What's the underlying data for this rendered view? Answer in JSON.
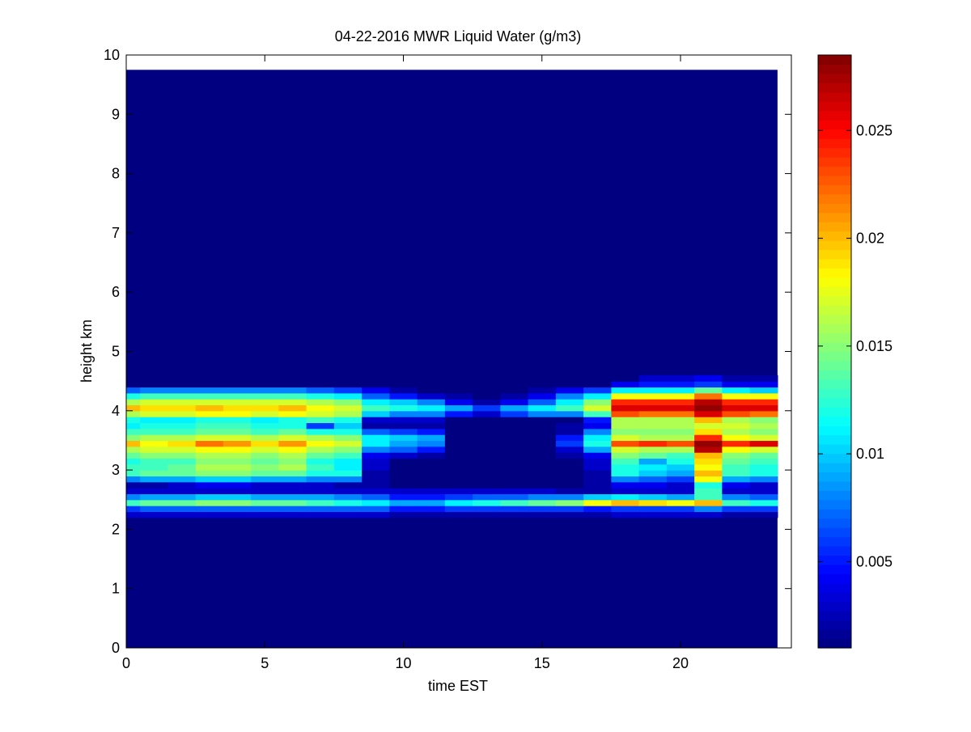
{
  "chart_data": {
    "type": "heatmap",
    "title": "04-22-2016 MWR Liquid Water (g/m3)",
    "xlabel": "time EST",
    "ylabel": "height km",
    "xlim": [
      0,
      24
    ],
    "ylim": [
      0,
      10
    ],
    "x_ticks": [
      0,
      5,
      10,
      15,
      20
    ],
    "y_ticks": [
      0,
      1,
      2,
      3,
      4,
      5,
      6,
      7,
      8,
      9,
      10
    ],
    "colorbar": {
      "colormap": "jet",
      "range": [
        0.001,
        0.0285
      ],
      "ticks": [
        0.005,
        0.01,
        0.015,
        0.02,
        0.025
      ],
      "tick_labels": [
        "0.005",
        "0.01",
        "0.015",
        "0.02",
        "0.025"
      ]
    },
    "background_value": 0.001,
    "data_extent": {
      "x_max": 23.5,
      "y_max": 9.75
    },
    "x_centers": [
      0,
      1,
      2,
      3,
      4,
      5,
      6,
      7,
      8,
      9,
      10,
      11,
      12,
      13,
      14,
      15,
      16,
      17,
      18,
      19,
      20,
      21,
      22,
      23
    ],
    "y_centers": [
      2.25,
      2.35,
      2.45,
      2.55,
      2.65,
      2.75,
      2.85,
      2.95,
      3.05,
      3.15,
      3.25,
      3.35,
      3.45,
      3.55,
      3.65,
      3.75,
      3.85,
      3.95,
      4.05,
      4.15,
      4.25,
      4.35,
      4.45,
      4.55
    ],
    "values": [
      [
        0.003,
        0.003,
        0.003,
        0.003,
        0.003,
        0.003,
        0.003,
        0.003,
        0.003,
        0.003,
        0.002,
        0.002,
        0.002,
        0.002,
        0.002,
        0.002,
        0.002,
        0.002,
        0.003,
        0.003,
        0.003,
        0.003,
        0.002,
        0.002
      ],
      [
        0.006,
        0.007,
        0.007,
        0.007,
        0.007,
        0.007,
        0.007,
        0.007,
        0.007,
        0.007,
        0.005,
        0.005,
        0.006,
        0.006,
        0.006,
        0.006,
        0.006,
        0.005,
        0.006,
        0.006,
        0.006,
        0.008,
        0.006,
        0.006
      ],
      [
        0.013,
        0.014,
        0.014,
        0.015,
        0.015,
        0.014,
        0.014,
        0.013,
        0.012,
        0.011,
        0.009,
        0.009,
        0.011,
        0.012,
        0.013,
        0.014,
        0.015,
        0.018,
        0.02,
        0.019,
        0.018,
        0.02,
        0.013,
        0.012
      ],
      [
        0.008,
        0.009,
        0.009,
        0.01,
        0.01,
        0.009,
        0.009,
        0.009,
        0.008,
        0.007,
        0.005,
        0.005,
        0.006,
        0.007,
        0.007,
        0.008,
        0.008,
        0.01,
        0.011,
        0.01,
        0.009,
        0.013,
        0.008,
        0.007
      ],
      [
        0.003,
        0.003,
        0.003,
        0.003,
        0.003,
        0.003,
        0.003,
        0.003,
        0.003,
        0.003,
        0.003,
        0.003,
        0.003,
        0.003,
        0.003,
        0.003,
        0.002,
        0.002,
        0.003,
        0.003,
        0.003,
        0.013,
        0.003,
        0.003
      ],
      [
        0.002,
        0.002,
        0.003,
        0.004,
        0.004,
        0.003,
        0.003,
        0.003,
        0.002,
        0.002,
        0.001,
        0.001,
        0.001,
        0.001,
        0.001,
        0.001,
        0.001,
        0.002,
        0.004,
        0.004,
        0.003,
        0.012,
        0.004,
        0.003
      ],
      [
        0.008,
        0.009,
        0.009,
        0.01,
        0.01,
        0.009,
        0.009,
        0.008,
        0.008,
        0.002,
        0.001,
        0.001,
        0.001,
        0.001,
        0.001,
        0.001,
        0.001,
        0.002,
        0.008,
        0.007,
        0.006,
        0.018,
        0.009,
        0.008
      ],
      [
        0.013,
        0.014,
        0.014,
        0.015,
        0.015,
        0.014,
        0.014,
        0.012,
        0.012,
        0.002,
        0.001,
        0.001,
        0.001,
        0.001,
        0.001,
        0.001,
        0.001,
        0.002,
        0.012,
        0.01,
        0.009,
        0.02,
        0.013,
        0.012
      ],
      [
        0.013,
        0.013,
        0.014,
        0.016,
        0.016,
        0.015,
        0.016,
        0.013,
        0.011,
        0.003,
        0.001,
        0.001,
        0.001,
        0.001,
        0.001,
        0.001,
        0.001,
        0.003,
        0.012,
        0.011,
        0.01,
        0.018,
        0.013,
        0.012
      ],
      [
        0.012,
        0.013,
        0.013,
        0.015,
        0.015,
        0.014,
        0.015,
        0.012,
        0.011,
        0.003,
        0.001,
        0.001,
        0.001,
        0.001,
        0.001,
        0.001,
        0.001,
        0.003,
        0.013,
        0.009,
        0.012,
        0.019,
        0.014,
        0.013
      ],
      [
        0.014,
        0.015,
        0.015,
        0.016,
        0.016,
        0.015,
        0.016,
        0.014,
        0.013,
        0.004,
        0.003,
        0.002,
        0.001,
        0.001,
        0.001,
        0.001,
        0.002,
        0.004,
        0.015,
        0.014,
        0.013,
        0.02,
        0.015,
        0.014
      ],
      [
        0.016,
        0.017,
        0.017,
        0.018,
        0.018,
        0.017,
        0.018,
        0.016,
        0.015,
        0.008,
        0.007,
        0.005,
        0.001,
        0.001,
        0.001,
        0.001,
        0.003,
        0.009,
        0.017,
        0.016,
        0.016,
        0.027,
        0.018,
        0.017
      ],
      [
        0.02,
        0.018,
        0.019,
        0.022,
        0.021,
        0.019,
        0.021,
        0.018,
        0.017,
        0.011,
        0.009,
        0.008,
        0.001,
        0.001,
        0.001,
        0.001,
        0.006,
        0.012,
        0.023,
        0.024,
        0.023,
        0.028,
        0.024,
        0.026
      ],
      [
        0.015,
        0.016,
        0.016,
        0.017,
        0.017,
        0.016,
        0.017,
        0.016,
        0.015,
        0.011,
        0.01,
        0.009,
        0.001,
        0.001,
        0.001,
        0.001,
        0.005,
        0.011,
        0.017,
        0.016,
        0.016,
        0.024,
        0.018,
        0.017
      ],
      [
        0.013,
        0.013,
        0.013,
        0.014,
        0.014,
        0.013,
        0.014,
        0.012,
        0.012,
        0.007,
        0.006,
        0.005,
        0.001,
        0.001,
        0.001,
        0.001,
        0.002,
        0.008,
        0.015,
        0.015,
        0.015,
        0.019,
        0.016,
        0.015
      ],
      [
        0.011,
        0.012,
        0.012,
        0.013,
        0.013,
        0.012,
        0.012,
        0.006,
        0.01,
        0.002,
        0.002,
        0.002,
        0.001,
        0.001,
        0.001,
        0.001,
        0.002,
        0.004,
        0.016,
        0.016,
        0.016,
        0.017,
        0.017,
        0.016
      ],
      [
        0.012,
        0.011,
        0.011,
        0.012,
        0.012,
        0.011,
        0.012,
        0.013,
        0.012,
        0.003,
        0.003,
        0.003,
        0.001,
        0.001,
        0.001,
        0.001,
        0.001,
        0.005,
        0.016,
        0.016,
        0.016,
        0.02,
        0.016,
        0.015
      ],
      [
        0.016,
        0.017,
        0.017,
        0.018,
        0.018,
        0.017,
        0.018,
        0.017,
        0.016,
        0.01,
        0.008,
        0.008,
        0.005,
        0.003,
        0.006,
        0.008,
        0.008,
        0.013,
        0.023,
        0.022,
        0.022,
        0.026,
        0.023,
        0.022
      ],
      [
        0.02,
        0.019,
        0.019,
        0.02,
        0.019,
        0.019,
        0.02,
        0.018,
        0.017,
        0.013,
        0.012,
        0.011,
        0.009,
        0.006,
        0.009,
        0.011,
        0.013,
        0.017,
        0.026,
        0.026,
        0.026,
        0.028,
        0.026,
        0.026
      ],
      [
        0.016,
        0.017,
        0.017,
        0.017,
        0.017,
        0.017,
        0.017,
        0.016,
        0.015,
        0.011,
        0.01,
        0.008,
        0.004,
        0.002,
        0.004,
        0.007,
        0.011,
        0.015,
        0.024,
        0.024,
        0.024,
        0.027,
        0.024,
        0.024
      ],
      [
        0.012,
        0.013,
        0.013,
        0.013,
        0.013,
        0.013,
        0.013,
        0.012,
        0.011,
        0.007,
        0.005,
        0.003,
        0.002,
        0.001,
        0.002,
        0.004,
        0.008,
        0.011,
        0.018,
        0.018,
        0.018,
        0.022,
        0.018,
        0.018
      ],
      [
        0.007,
        0.008,
        0.008,
        0.008,
        0.008,
        0.008,
        0.008,
        0.007,
        0.006,
        0.004,
        0.002,
        0.001,
        0.001,
        0.001,
        0.001,
        0.002,
        0.004,
        0.006,
        0.011,
        0.011,
        0.011,
        0.014,
        0.011,
        0.01
      ],
      [
        0.001,
        0.001,
        0.001,
        0.001,
        0.001,
        0.001,
        0.001,
        0.001,
        0.001,
        0.001,
        0.001,
        0.001,
        0.001,
        0.001,
        0.001,
        0.001,
        0.001,
        0.001,
        0.004,
        0.005,
        0.005,
        0.006,
        0.004,
        0.004
      ],
      [
        0.001,
        0.001,
        0.001,
        0.001,
        0.001,
        0.001,
        0.001,
        0.001,
        0.001,
        0.001,
        0.001,
        0.001,
        0.001,
        0.001,
        0.001,
        0.001,
        0.001,
        0.001,
        0.001,
        0.003,
        0.003,
        0.004,
        0.002,
        0.002
      ]
    ]
  }
}
